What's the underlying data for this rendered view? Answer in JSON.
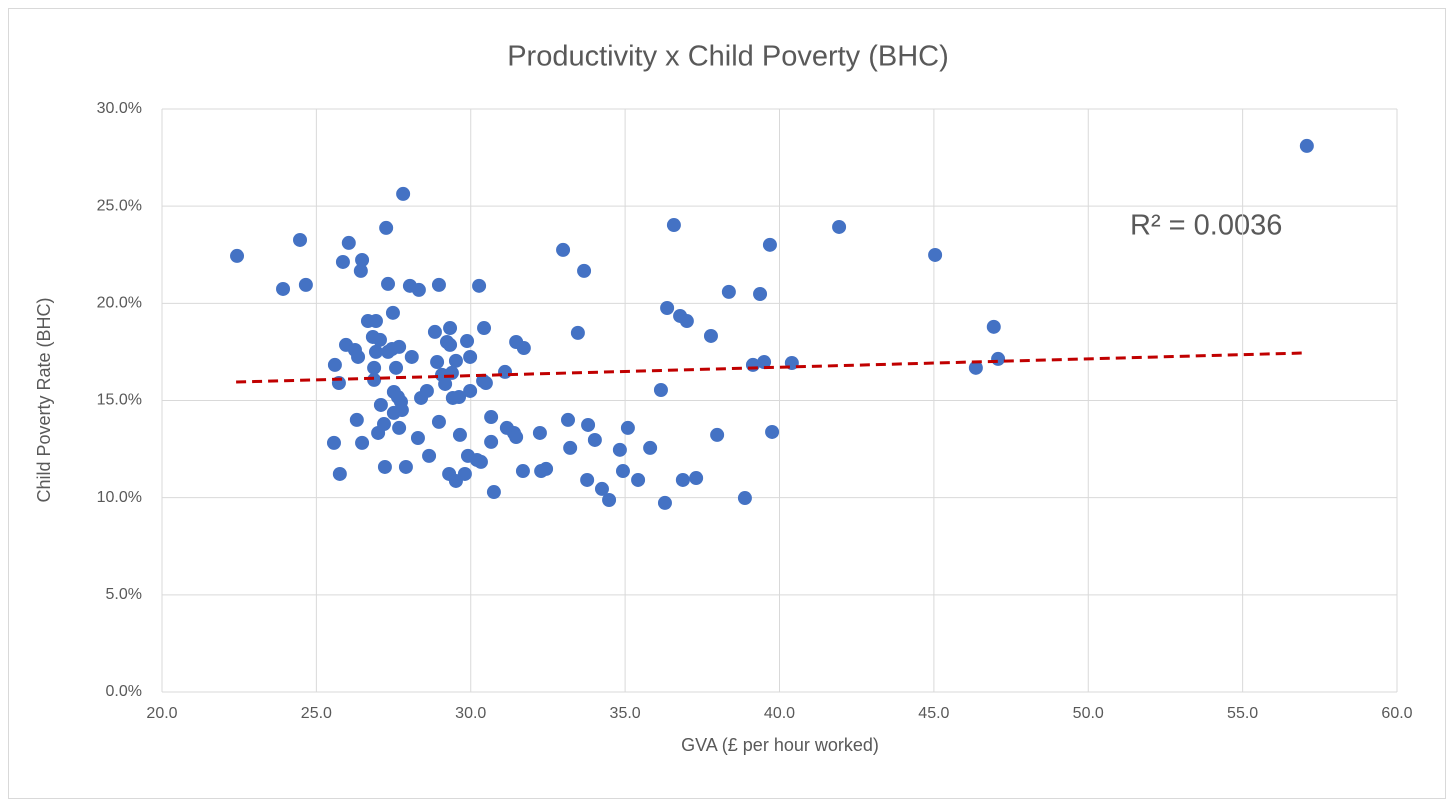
{
  "chart_data": {
    "type": "scatter",
    "title": "Productivity x Child Poverty (BHC)",
    "x_label": "GVA (£ per hour worked)",
    "y_label": "Child Poverty Rate (BHC)",
    "color": "#4472c4",
    "grid": true,
    "xlim": [
      20,
      60
    ],
    "xticks": [
      {
        "value": 20,
        "label": "20.0"
      },
      {
        "value": 25,
        "label": "25.0"
      },
      {
        "value": 30,
        "label": "30.0"
      },
      {
        "value": 35,
        "label": "35.0"
      },
      {
        "value": 40,
        "label": "40.0"
      },
      {
        "value": 45,
        "label": "45.0"
      },
      {
        "value": 50,
        "label": "50.0"
      },
      {
        "value": 55,
        "label": "55.0"
      },
      {
        "value": 60,
        "label": "60.0"
      }
    ],
    "ylim": [
      0,
      30
    ],
    "yticks": [
      {
        "value": 0,
        "label": "0.0%"
      },
      {
        "value": 5,
        "label": "5.0%"
      },
      {
        "value": 10,
        "label": "10.0%"
      },
      {
        "value": 15,
        "label": "15.0%"
      },
      {
        "value": 20,
        "label": "20.0%"
      },
      {
        "value": 25,
        "label": "25.0%"
      },
      {
        "value": 30,
        "label": "30.0%"
      }
    ],
    "x": [
      22.43,
      23.92,
      24.47,
      24.66,
      25.57,
      25.6,
      25.73,
      25.76,
      25.86,
      25.96,
      26.05,
      26.25,
      26.31,
      26.35,
      26.44,
      26.48,
      26.48,
      26.67,
      26.83,
      26.87,
      26.87,
      26.93,
      26.93,
      27.0,
      27.06,
      27.09,
      27.19,
      27.22,
      27.26,
      27.32,
      27.32,
      27.45,
      27.48,
      27.51,
      27.51,
      27.58,
      27.64,
      27.68,
      27.68,
      27.74,
      27.77,
      27.81,
      27.9,
      28.03,
      28.09,
      28.29,
      28.32,
      28.39,
      28.58,
      28.65,
      28.84,
      28.91,
      28.97,
      28.97,
      29.07,
      29.17,
      29.23,
      29.3,
      29.33,
      29.33,
      29.39,
      29.42,
      29.52,
      29.52,
      29.62,
      29.65,
      29.81,
      29.88,
      29.91,
      29.98,
      29.98,
      30.2,
      30.27,
      30.33,
      30.4,
      30.43,
      30.49,
      30.66,
      30.66,
      30.75,
      31.11,
      31.17,
      31.4,
      31.47,
      31.47,
      31.69,
      31.72,
      32.24,
      32.28,
      32.44,
      32.99,
      33.15,
      33.22,
      33.47,
      33.67,
      33.77,
      33.8,
      34.02,
      34.25,
      34.48,
      34.83,
      34.93,
      35.09,
      35.42,
      35.81,
      36.16,
      36.29,
      36.36,
      36.58,
      36.78,
      36.87,
      37.0,
      37.3,
      37.78,
      37.98,
      38.36,
      38.88,
      39.14,
      39.37,
      39.5,
      39.69,
      39.76,
      40.4,
      41.93,
      45.04,
      46.36,
      46.94,
      47.08,
      57.08
    ],
    "y": [
      22.44,
      20.74,
      23.26,
      20.95,
      12.82,
      16.83,
      15.9,
      11.22,
      22.13,
      17.86,
      23.11,
      17.6,
      14.0,
      17.24,
      21.67,
      22.23,
      12.82,
      19.09,
      18.27,
      16.68,
      16.06,
      19.09,
      17.5,
      13.33,
      18.12,
      14.77,
      13.79,
      11.58,
      23.88,
      21.0,
      17.5,
      17.65,
      19.51,
      14.36,
      15.44,
      16.68,
      15.18,
      17.76,
      13.59,
      14.93,
      14.51,
      25.63,
      11.58,
      20.9,
      17.24,
      13.07,
      20.69,
      15.13,
      15.49,
      12.15,
      18.53,
      16.98,
      20.95,
      13.9,
      16.32,
      15.85,
      18.01,
      11.22,
      17.86,
      18.73,
      16.42,
      15.13,
      17.04,
      10.86,
      15.18,
      13.23,
      11.22,
      18.06,
      12.15,
      15.49,
      17.24,
      11.94,
      20.9,
      11.84,
      16.01,
      18.73,
      15.9,
      12.87,
      14.15,
      10.29,
      16.47,
      13.59,
      13.33,
      18.01,
      13.12,
      11.37,
      17.7,
      13.33,
      11.37,
      11.48,
      22.75,
      14.0,
      12.56,
      18.48,
      21.67,
      10.91,
      13.74,
      12.97,
      10.45,
      9.88,
      12.46,
      11.37,
      13.59,
      10.91,
      12.56,
      15.54,
      9.73,
      19.76,
      24.03,
      19.35,
      10.91,
      19.09,
      11.01,
      18.32,
      13.23,
      20.59,
      9.98,
      16.83,
      20.48,
      16.98,
      23.01,
      13.38,
      16.93,
      23.93,
      22.49,
      16.68,
      18.79,
      17.14,
      28.1
    ],
    "trendline": {
      "x": [
        22.4,
        57.1
      ],
      "y": [
        15.95,
        17.45
      ],
      "color": "#c00000",
      "annotation": "R² = 0.0036"
    }
  }
}
